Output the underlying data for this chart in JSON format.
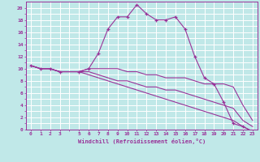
{
  "title": "",
  "xlabel": "Windchill (Refroidissement éolien,°C)",
  "bg_color": "#c0e8e8",
  "grid_color": "#ffffff",
  "line_color": "#993399",
  "xlim": [
    -0.5,
    23.5
  ],
  "ylim": [
    0,
    21
  ],
  "xtick_labels": [
    "0",
    "1",
    "2",
    "3",
    "",
    "5",
    "6",
    "7",
    "8",
    "9",
    "10",
    "11",
    "12",
    "13",
    "14",
    "15",
    "16",
    "17",
    "18",
    "19",
    "20",
    "21",
    "22",
    "23"
  ],
  "ytick_labels": [
    "0",
    "",
    "2",
    "",
    "4",
    "",
    "6",
    "",
    "8",
    "",
    "10",
    "",
    "12",
    "",
    "14",
    "",
    "16",
    "",
    "18",
    "",
    "20"
  ],
  "ytick_vals": [
    0,
    1,
    2,
    3,
    4,
    5,
    6,
    7,
    8,
    9,
    10,
    11,
    12,
    13,
    14,
    15,
    16,
    17,
    18,
    19,
    20
  ],
  "lines": [
    {
      "x": [
        0,
        1,
        2,
        3,
        5,
        6,
        7,
        8,
        9,
        10,
        11,
        12,
        13,
        14,
        15,
        16,
        17,
        18,
        19,
        20,
        21,
        22,
        23
      ],
      "y": [
        10.5,
        10,
        10,
        9.5,
        9.5,
        10,
        12.5,
        16.5,
        18.5,
        18.5,
        20.5,
        19,
        18,
        18,
        18.5,
        16.5,
        12,
        8.5,
        7.5,
        4.5,
        1,
        0.5,
        -0.3
      ],
      "marker": true
    },
    {
      "x": [
        0,
        1,
        2,
        3,
        5,
        6,
        7,
        8,
        9,
        10,
        11,
        12,
        13,
        14,
        15,
        16,
        17,
        18,
        19,
        20,
        21,
        22,
        23
      ],
      "y": [
        10.5,
        10,
        10,
        9.5,
        9.5,
        10,
        10,
        10,
        10,
        9.5,
        9.5,
        9,
        9,
        8.5,
        8.5,
        8.5,
        8,
        7.5,
        7.5,
        7.5,
        7,
        4,
        1.5
      ],
      "marker": false
    },
    {
      "x": [
        0,
        1,
        2,
        3,
        5,
        6,
        7,
        8,
        9,
        10,
        11,
        12,
        13,
        14,
        15,
        16,
        17,
        18,
        19,
        20,
        21,
        22,
        23
      ],
      "y": [
        10.5,
        10,
        10,
        9.5,
        9.5,
        9.5,
        9,
        8.5,
        8,
        8,
        7.5,
        7,
        7,
        6.5,
        6.5,
        6,
        5.5,
        5,
        4.5,
        4,
        3.5,
        1.5,
        0.5
      ],
      "marker": false
    },
    {
      "x": [
        0,
        1,
        2,
        3,
        5,
        6,
        7,
        8,
        9,
        10,
        11,
        12,
        13,
        14,
        15,
        16,
        17,
        18,
        19,
        20,
        21,
        22,
        23
      ],
      "y": [
        10.5,
        10,
        10,
        9.5,
        9.5,
        9,
        8.5,
        8,
        7.5,
        7,
        6.5,
        6,
        5.5,
        5,
        4.5,
        4,
        3.5,
        3,
        2.5,
        2,
        1.5,
        0.5,
        -0.3
      ],
      "marker": false
    }
  ]
}
